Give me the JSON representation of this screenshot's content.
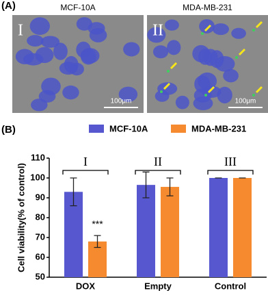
{
  "panel_a": {
    "label": "(A)",
    "images": [
      {
        "title": "MCF-10A",
        "numeral": "I",
        "scale_bar": "100μm"
      },
      {
        "title": "MDA-MB-231",
        "numeral": "II",
        "scale_bar": "100μm"
      }
    ]
  },
  "panel_b_label": "(B)",
  "chart_data": {
    "type": "bar",
    "ylabel": "Cell viability(% of control)",
    "categories": [
      "DOX",
      "Empty",
      "Control"
    ],
    "group_labels": [
      "I",
      "II",
      "III"
    ],
    "annotation": "***",
    "series": [
      {
        "name": "MCF-10A",
        "color": "#5757cf",
        "values": [
          93,
          96.5,
          100
        ],
        "errors": [
          7,
          6.5,
          0
        ]
      },
      {
        "name": "MDA-MB-231",
        "color": "#f58b2e",
        "values": [
          68,
          95.5,
          100
        ],
        "errors": [
          3,
          4.5,
          0
        ]
      }
    ],
    "ylim": [
      50,
      110
    ],
    "yticks": [
      50,
      60,
      70,
      80,
      90,
      100,
      110
    ]
  }
}
